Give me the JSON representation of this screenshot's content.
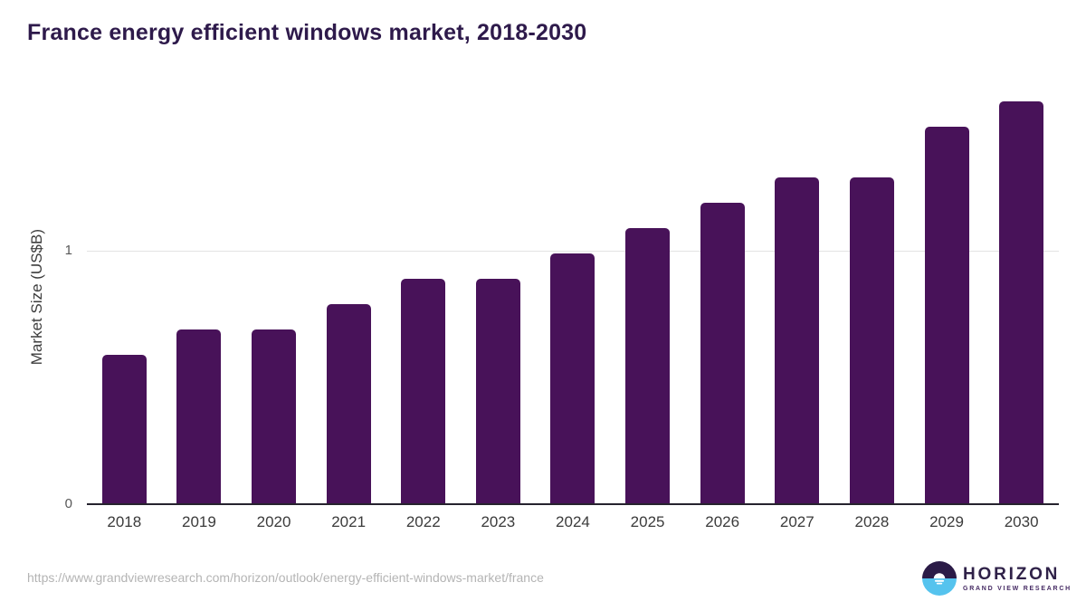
{
  "header": {
    "title": "France energy efficient windows market, 2018-2030"
  },
  "axes": {
    "ylabel": "Market Size (US$B)",
    "ytick_labels": [
      "0",
      "1"
    ]
  },
  "chart_data": {
    "type": "bar",
    "title": "France energy efficient windows market, 2018-2030",
    "categories": [
      "2018",
      "2019",
      "2020",
      "2021",
      "2022",
      "2023",
      "2024",
      "2025",
      "2026",
      "2027",
      "2028",
      "2029",
      "2030"
    ],
    "values": [
      0.59,
      0.69,
      0.69,
      0.79,
      0.89,
      0.89,
      0.99,
      1.09,
      1.19,
      1.29,
      1.29,
      1.49,
      1.59
    ],
    "xlabel": "",
    "ylabel": "Market Size (US$B)",
    "yticks": [
      0,
      1
    ],
    "ylim": [
      0,
      1.63
    ],
    "grid": "horizontal line at y=1 only",
    "legend": "none",
    "bar_color": "#481259"
  },
  "colors": {
    "bar": "#481259",
    "title_text": "#2e1a4b",
    "axis_line": "#26232e",
    "gridline": "#e3e3e3",
    "tick_text": "#585858",
    "xlabel_text": "#3b3b3b",
    "url_text": "#b4b4b4",
    "logo_purple": "#2b1b47",
    "logo_blue": "#55c3ee"
  },
  "footer": {
    "source_url": "https://www.grandviewresearch.com/horizon/outlook/energy-efficient-windows-market/france",
    "logo": {
      "brand": "HORIZON",
      "sub": "GRAND VIEW RESEARCH"
    }
  }
}
